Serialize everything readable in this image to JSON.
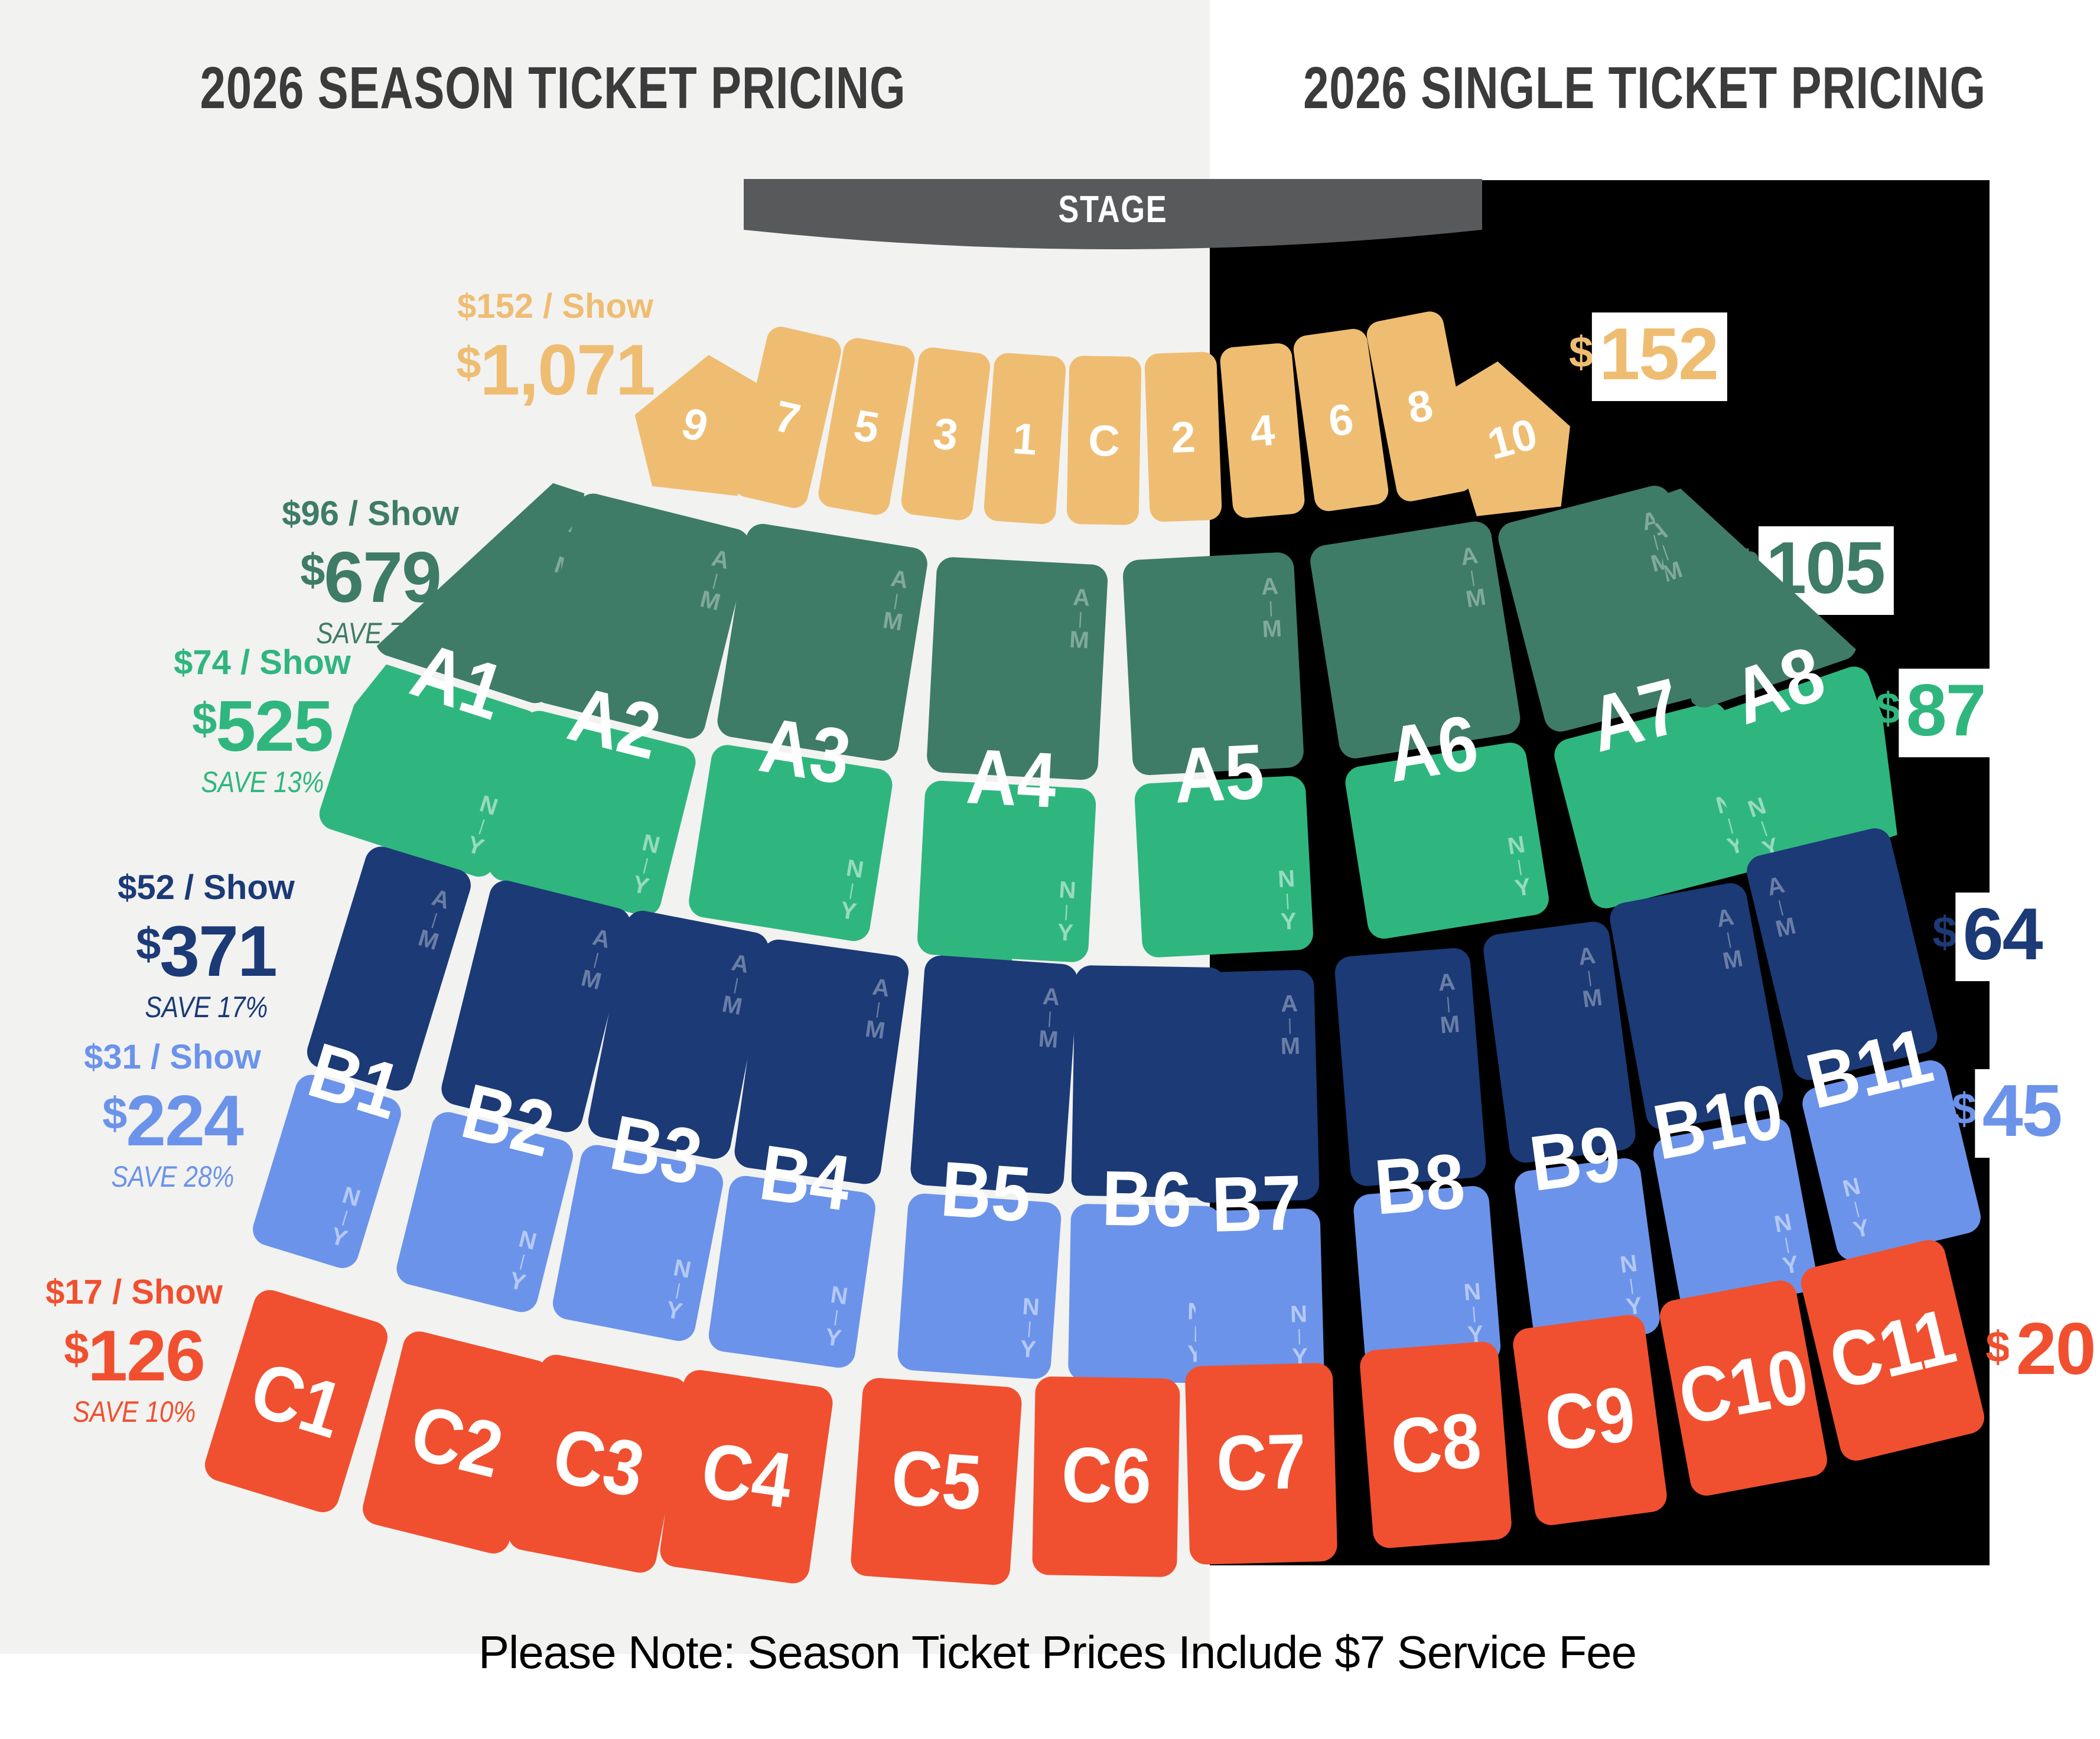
{
  "titles": {
    "left": "2026 SEASON TICKET PRICING",
    "right": "2026 SINGLE TICKET PRICING"
  },
  "stage_label": "STAGE",
  "note": "Please Note: Season Ticket Prices Include $7 Service Fee",
  "range_labels": {
    "upper": [
      "A",
      "|",
      "M"
    ],
    "lower": [
      "N",
      "|",
      "Y"
    ]
  },
  "colors": {
    "background_left": "#F2F2F1",
    "background_right": "#000000",
    "stage": "#58595B",
    "title_text": "#3B3B3C",
    "pit": "#EFBD72",
    "a_upper": "#3E7C67",
    "a_lower": "#2FB67E",
    "b_upper": "#1B3A76",
    "b_lower": "#6B93EA",
    "c": "#F0502F",
    "note_text": "#000000"
  },
  "tiers": [
    {
      "id": "pit",
      "color": "#EFBD72",
      "season": {
        "per_show": "$152 / Show",
        "total": "$1,071",
        "save": ""
      },
      "single": "$152"
    },
    {
      "id": "a-upper",
      "color": "#3E7C67",
      "season": {
        "per_show": "$96 / Show",
        "total": "$679",
        "save": "SAVE 7%"
      },
      "single": "$105"
    },
    {
      "id": "a-lower",
      "color": "#2FB67E",
      "season": {
        "per_show": "$74 / Show",
        "total": "$525",
        "save": "SAVE 13%"
      },
      "single": "$87"
    },
    {
      "id": "b-upper",
      "color": "#1B3A76",
      "season": {
        "per_show": "$52 / Show",
        "total": "$371",
        "save": "SAVE 17%"
      },
      "single": "$64"
    },
    {
      "id": "b-lower",
      "color": "#6B93EA",
      "season": {
        "per_show": "$31 / Show",
        "total": "$224",
        "save": "SAVE 28%"
      },
      "single": "$45"
    },
    {
      "id": "c",
      "color": "#F0502F",
      "season": {
        "per_show": "$17 / Show",
        "total": "$126",
        "save": "SAVE 10%"
      },
      "single": "$20"
    }
  ],
  "sections": {
    "pit": [
      "9",
      "7",
      "5",
      "3",
      "1",
      "C",
      "2",
      "4",
      "6",
      "8",
      "10"
    ],
    "a": [
      "A1",
      "A2",
      "A3",
      "A4",
      "A5",
      "A6",
      "A7",
      "A8"
    ],
    "b": [
      "B1",
      "B2",
      "B3",
      "B4",
      "B5",
      "B6",
      "B7",
      "B8",
      "B9",
      "B10",
      "B11"
    ],
    "c": [
      "C1",
      "C2",
      "C3",
      "C4",
      "C5",
      "C6",
      "C7",
      "C8",
      "C9",
      "C10",
      "C11"
    ]
  }
}
